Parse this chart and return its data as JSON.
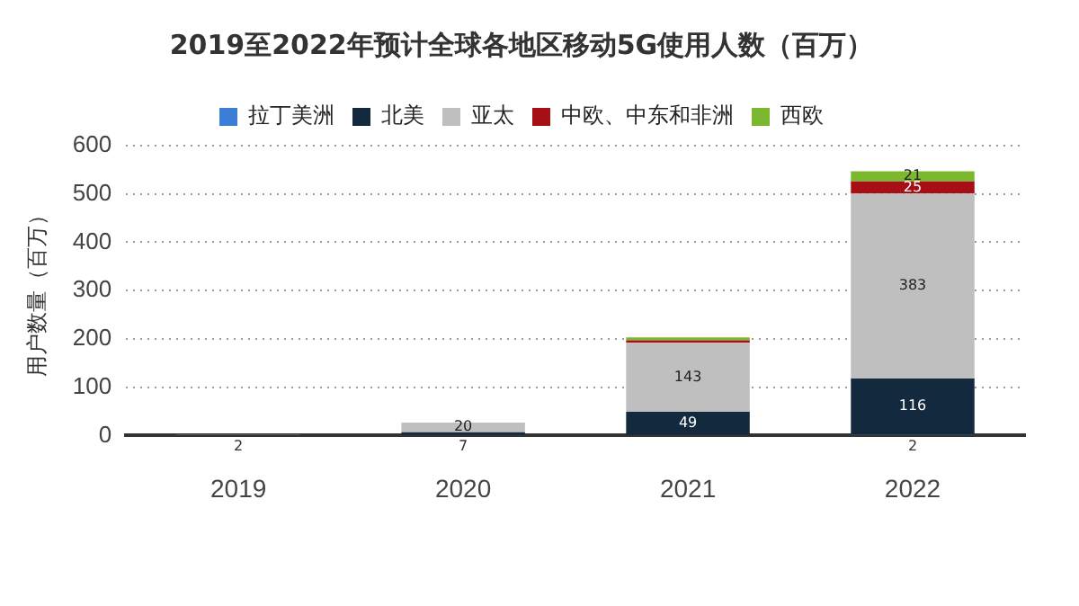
{
  "chart_data": {
    "type": "bar",
    "stacked": true,
    "title": "2019至2022年预计全球各地区移动5G使用人数（百万）",
    "ylabel": "用户数量（百万）",
    "categories": [
      "2019",
      "2020",
      "2021",
      "2022"
    ],
    "series": [
      {
        "name": "拉丁美洲",
        "color": "#3a7fd5",
        "values": [
          null,
          null,
          null,
          2
        ],
        "value_labels": [
          null,
          null,
          null,
          "2"
        ]
      },
      {
        "name": "北美",
        "color": "#13293d",
        "values": [
          null,
          7,
          49,
          116
        ],
        "value_labels": [
          null,
          "7",
          "49",
          "116"
        ]
      },
      {
        "name": "亚太",
        "color": "#bfbfbf",
        "values": [
          2,
          20,
          143,
          383
        ],
        "value_labels": [
          "2",
          "20",
          "143",
          "383"
        ]
      },
      {
        "name": "中欧、中东和非洲",
        "color": "#a50f15",
        "values": [
          null,
          null,
          5,
          25
        ],
        "value_labels": [
          null,
          null,
          null,
          "25"
        ]
      },
      {
        "name": "西欧",
        "color": "#7cb82f",
        "values": [
          null,
          null,
          6,
          21
        ],
        "value_labels": [
          null,
          null,
          null,
          "21"
        ]
      }
    ],
    "ylim": [
      0,
      600
    ],
    "yticks": [
      0,
      100,
      200,
      300,
      400,
      500,
      600
    ],
    "grid": "y",
    "legend": "top"
  }
}
